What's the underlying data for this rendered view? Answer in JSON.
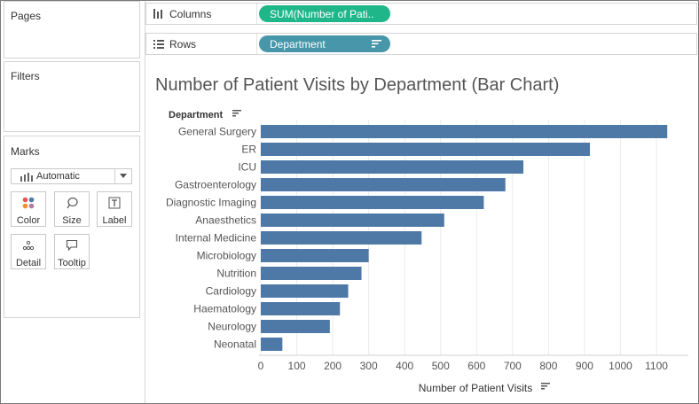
{
  "sidebar": {
    "pages_title": "Pages",
    "filters_title": "Filters",
    "marks": {
      "title": "Marks",
      "mark_type": "Automatic",
      "buttons": [
        {
          "label": "Color",
          "icon": "color-dots-icon"
        },
        {
          "label": "Size",
          "icon": "size-lasso-icon"
        },
        {
          "label": "Label",
          "icon": "label-t-icon"
        },
        {
          "label": "Detail",
          "icon": "detail-dots-icon"
        },
        {
          "label": "Tooltip",
          "icon": "tooltip-bubble-icon"
        }
      ]
    }
  },
  "shelves": {
    "columns": {
      "label": "Columns",
      "pill": "SUM(Number of Pati..",
      "pill_color": "#1fb68a"
    },
    "rows": {
      "label": "Rows",
      "pill": "Department",
      "pill_color": "#4896a9"
    }
  },
  "view": {
    "title": "Number of Patient Visits by Department (Bar Chart)"
  },
  "chart_data": {
    "type": "bar",
    "orientation": "horizontal",
    "title": "Number of Patient Visits by Department (Bar Chart)",
    "row_header": "Department",
    "xlabel": "Number of Patient Visits",
    "ylabel": "Department",
    "categories": [
      "General Surgery",
      "ER",
      "ICU",
      "Gastroenterology",
      "Diagnostic Imaging",
      "Anaesthetics",
      "Internal Medicine",
      "Microbiology",
      "Nutrition",
      "Cardiology",
      "Haematology",
      "Neurology",
      "Neonatal"
    ],
    "values": [
      1130,
      915,
      730,
      680,
      620,
      510,
      447,
      300,
      280,
      243,
      220,
      192,
      60
    ],
    "xlim": [
      0,
      1180
    ],
    "xticks": [
      0,
      100,
      200,
      300,
      400,
      500,
      600,
      700,
      800,
      900,
      1000,
      1100
    ],
    "grid": true,
    "bar_color": "#4e79a7",
    "sorted": "descending"
  }
}
